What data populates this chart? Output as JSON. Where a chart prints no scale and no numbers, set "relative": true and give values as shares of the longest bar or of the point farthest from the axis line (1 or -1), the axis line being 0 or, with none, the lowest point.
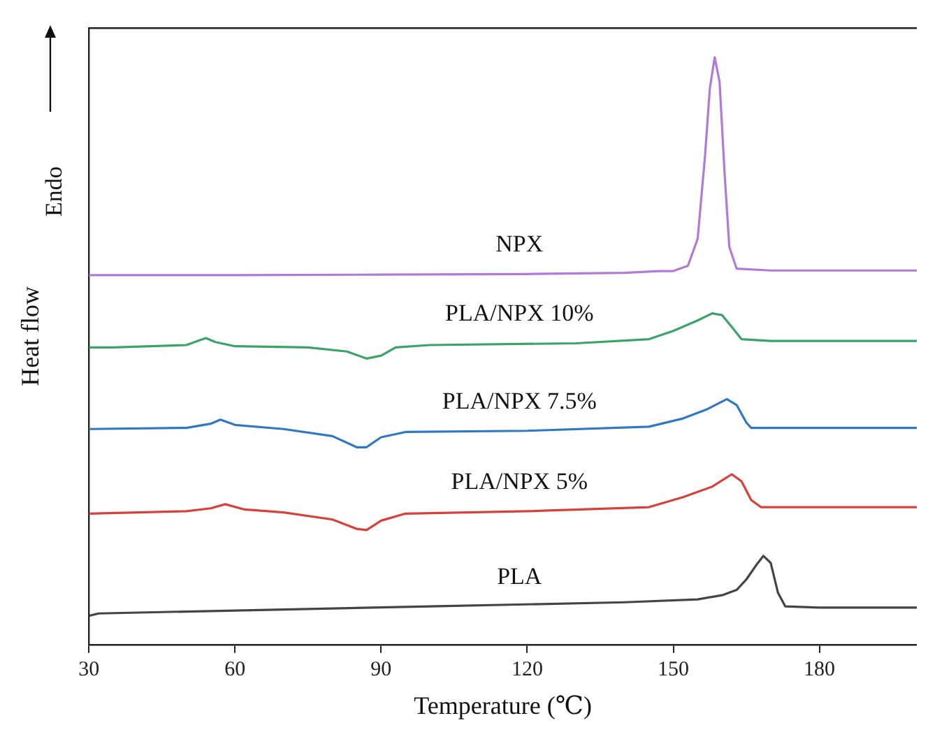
{
  "chart_data": {
    "type": "line",
    "relative": true,
    "xlabel": "Temperature (℃)",
    "ylabel": "Heat flow",
    "annotations": [
      "Endo"
    ],
    "xlim": [
      30,
      200
    ],
    "xticks": [
      30,
      60,
      90,
      120,
      150,
      180
    ],
    "grid": false,
    "legend": false,
    "marker": "none",
    "line_style": "solid",
    "series": [
      {
        "name": "NPX",
        "color": "#b07ad6",
        "x": [
          30,
          60,
          90,
          120,
          140,
          147,
          150,
          153,
          155,
          156.5,
          157.5,
          158.5,
          159.5,
          160.5,
          161.5,
          163,
          170,
          200
        ],
        "values": [
          0.629,
          0.629,
          0.63,
          0.631,
          0.633,
          0.636,
          0.636,
          0.645,
          0.691,
          0.831,
          0.947,
          1,
          0.958,
          0.807,
          0.677,
          0.64,
          0.637,
          0.637
        ]
      },
      {
        "name": "PLA/NPX 10%",
        "color": "#3aa36a",
        "x": [
          30,
          35,
          50,
          54,
          56,
          60,
          75,
          83,
          87,
          90,
          93,
          100,
          130,
          145,
          150,
          155,
          158,
          160,
          162,
          164,
          170,
          200
        ],
        "values": [
          0.506,
          0.506,
          0.51,
          0.522,
          0.515,
          0.508,
          0.506,
          0.499,
          0.487,
          0.492,
          0.506,
          0.51,
          0.513,
          0.52,
          0.534,
          0.552,
          0.564,
          0.561,
          0.541,
          0.52,
          0.517,
          0.517
        ]
      },
      {
        "name": "PLA/NPX 7.5%",
        "color": "#2f78c4",
        "x": [
          30,
          50,
          55,
          57,
          60,
          70,
          80,
          85,
          87,
          90,
          95,
          120,
          145,
          152,
          157,
          161,
          163,
          165,
          166,
          200
        ],
        "values": [
          0.367,
          0.369,
          0.376,
          0.383,
          0.374,
          0.367,
          0.355,
          0.336,
          0.336,
          0.353,
          0.362,
          0.364,
          0.371,
          0.385,
          0.401,
          0.418,
          0.408,
          0.378,
          0.369,
          0.369
        ]
      },
      {
        "name": "PLA/NPX 5%",
        "color": "#d9403a",
        "x": [
          30,
          50,
          55,
          58,
          62,
          70,
          80,
          85,
          87,
          90,
          95,
          120,
          145,
          152,
          158,
          162,
          164,
          166,
          168,
          200
        ],
        "values": [
          0.223,
          0.227,
          0.232,
          0.239,
          0.23,
          0.225,
          0.213,
          0.197,
          0.195,
          0.211,
          0.223,
          0.227,
          0.234,
          0.251,
          0.269,
          0.29,
          0.278,
          0.246,
          0.234,
          0.234
        ]
      },
      {
        "name": "PLA",
        "color": "#444444",
        "x": [
          30,
          32,
          60,
          100,
          140,
          155,
          160,
          163,
          165,
          167,
          168.5,
          170,
          171.5,
          173,
          180,
          200
        ],
        "values": [
          0.049,
          0.053,
          0.058,
          0.065,
          0.072,
          0.077,
          0.084,
          0.093,
          0.111,
          0.135,
          0.151,
          0.139,
          0.088,
          0.065,
          0.063,
          0.063
        ]
      }
    ]
  }
}
